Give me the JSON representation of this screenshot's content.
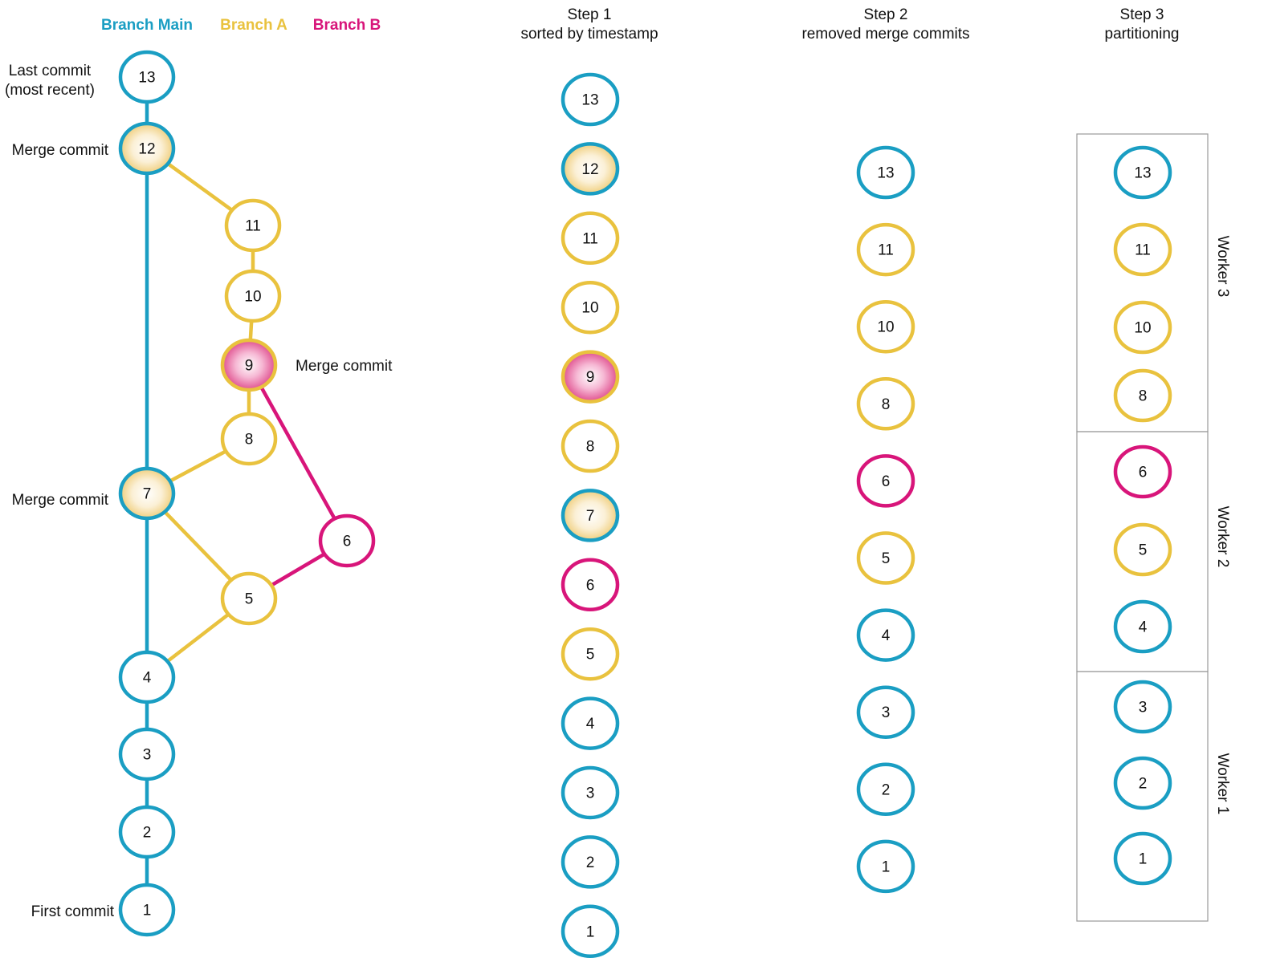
{
  "colors": {
    "main": "#1a9ec3",
    "branch_a": "#e9c23e",
    "branch_b": "#d8157a",
    "frame": "#999999"
  },
  "legend": [
    {
      "label": "Branch Main",
      "color_key": "main"
    },
    {
      "label": "Branch A",
      "color_key": "branch_a"
    },
    {
      "label": "Branch B",
      "color_key": "branch_b"
    }
  ],
  "graph": {
    "labels": {
      "last_commit_line1": "Last commit",
      "last_commit_line2": "(most recent)",
      "merge_commit_12": "Merge commit",
      "merge_commit_9": "Merge commit",
      "merge_commit_7": "Merge commit",
      "first_commit": "First commit"
    },
    "nodes": [
      {
        "id": "13",
        "branch": "main",
        "fill": "plain"
      },
      {
        "id": "12",
        "branch": "main",
        "fill": "branch_a"
      },
      {
        "id": "11",
        "branch": "branch_a",
        "fill": "plain"
      },
      {
        "id": "10",
        "branch": "branch_a",
        "fill": "plain"
      },
      {
        "id": "9",
        "branch": "branch_a",
        "fill": "branch_b"
      },
      {
        "id": "8",
        "branch": "branch_a",
        "fill": "plain"
      },
      {
        "id": "7",
        "branch": "main",
        "fill": "branch_a"
      },
      {
        "id": "6",
        "branch": "branch_b",
        "fill": "plain"
      },
      {
        "id": "5",
        "branch": "branch_a",
        "fill": "plain"
      },
      {
        "id": "4",
        "branch": "main",
        "fill": "plain"
      },
      {
        "id": "3",
        "branch": "main",
        "fill": "plain"
      },
      {
        "id": "2",
        "branch": "main",
        "fill": "plain"
      },
      {
        "id": "1",
        "branch": "main",
        "fill": "plain"
      }
    ],
    "edges": [
      {
        "from": "13",
        "to": "12",
        "branch": "main"
      },
      {
        "from": "12",
        "to": "7",
        "branch": "main"
      },
      {
        "from": "7",
        "to": "4",
        "branch": "main"
      },
      {
        "from": "4",
        "to": "3",
        "branch": "main"
      },
      {
        "from": "3",
        "to": "2",
        "branch": "main"
      },
      {
        "from": "2",
        "to": "1",
        "branch": "main"
      },
      {
        "from": "12",
        "to": "11",
        "branch": "branch_a"
      },
      {
        "from": "11",
        "to": "10",
        "branch": "branch_a"
      },
      {
        "from": "10",
        "to": "9",
        "branch": "branch_a"
      },
      {
        "from": "9",
        "to": "8",
        "branch": "branch_a"
      },
      {
        "from": "8",
        "to": "7",
        "branch": "branch_a"
      },
      {
        "from": "7",
        "to": "5",
        "branch": "branch_a"
      },
      {
        "from": "5",
        "to": "4",
        "branch": "branch_a"
      },
      {
        "from": "9",
        "to": "6",
        "branch": "branch_b"
      },
      {
        "from": "6",
        "to": "5",
        "branch": "branch_b"
      }
    ]
  },
  "step1": {
    "title": "Step 1",
    "subtitle": "sorted by timestamp",
    "nodes": [
      {
        "id": "13",
        "branch": "main",
        "fill": "plain"
      },
      {
        "id": "12",
        "branch": "main",
        "fill": "branch_a"
      },
      {
        "id": "11",
        "branch": "branch_a",
        "fill": "plain"
      },
      {
        "id": "10",
        "branch": "branch_a",
        "fill": "plain"
      },
      {
        "id": "9",
        "branch": "branch_a",
        "fill": "branch_b"
      },
      {
        "id": "8",
        "branch": "branch_a",
        "fill": "plain"
      },
      {
        "id": "7",
        "branch": "main",
        "fill": "branch_a"
      },
      {
        "id": "6",
        "branch": "branch_b",
        "fill": "plain"
      },
      {
        "id": "5",
        "branch": "branch_a",
        "fill": "plain"
      },
      {
        "id": "4",
        "branch": "main",
        "fill": "plain"
      },
      {
        "id": "3",
        "branch": "main",
        "fill": "plain"
      },
      {
        "id": "2",
        "branch": "main",
        "fill": "plain"
      },
      {
        "id": "1",
        "branch": "main",
        "fill": "plain"
      }
    ]
  },
  "step2": {
    "title": "Step 2",
    "subtitle": "removed merge commits",
    "nodes": [
      {
        "id": "13",
        "branch": "main"
      },
      {
        "id": "11",
        "branch": "branch_a"
      },
      {
        "id": "10",
        "branch": "branch_a"
      },
      {
        "id": "8",
        "branch": "branch_a"
      },
      {
        "id": "6",
        "branch": "branch_b"
      },
      {
        "id": "5",
        "branch": "branch_a"
      },
      {
        "id": "4",
        "branch": "main"
      },
      {
        "id": "3",
        "branch": "main"
      },
      {
        "id": "2",
        "branch": "main"
      },
      {
        "id": "1",
        "branch": "main"
      }
    ]
  },
  "step3": {
    "title": "Step 3",
    "subtitle": "partitioning",
    "workers": [
      {
        "label": "Worker 3",
        "nodes": [
          {
            "id": "13",
            "branch": "main"
          },
          {
            "id": "11",
            "branch": "branch_a"
          },
          {
            "id": "10",
            "branch": "branch_a"
          },
          {
            "id": "8",
            "branch": "branch_a"
          }
        ]
      },
      {
        "label": "Worker 2",
        "nodes": [
          {
            "id": "6",
            "branch": "branch_b"
          },
          {
            "id": "5",
            "branch": "branch_a"
          },
          {
            "id": "4",
            "branch": "main"
          }
        ]
      },
      {
        "label": "Worker 1",
        "nodes": [
          {
            "id": "3",
            "branch": "main"
          },
          {
            "id": "2",
            "branch": "main"
          },
          {
            "id": "1",
            "branch": "main"
          }
        ]
      }
    ]
  }
}
